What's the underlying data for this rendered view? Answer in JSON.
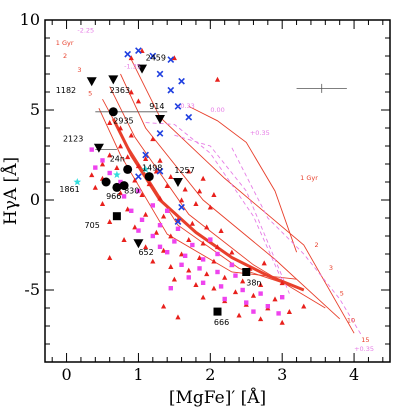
{
  "chart_data": {
    "type": "scatter",
    "xlabel": "[MgFe]′ [Å]",
    "ylabel": "HγA [Å]",
    "xlim": [
      -0.3,
      4.5
    ],
    "ylim": [
      -9,
      10
    ],
    "xticks": [
      0,
      1,
      2,
      3,
      4
    ],
    "yticks": [
      -5,
      0,
      5,
      10
    ],
    "colors": {
      "model_solid": "#e8402c",
      "model_dashed": "#e67de6",
      "cluster_marker": "#000000",
      "red_triangle": "#e8201c",
      "magenta_square": "#ee44ee",
      "blue_cross": "#2040e0",
      "cyan_star": "#33dddd"
    },
    "model_grid_lines": [
      [
        [
          0.9,
          7.8
        ],
        [
          1.3,
          4.6
        ],
        [
          2.2,
          1.2
        ],
        [
          3.3,
          -2.5
        ],
        [
          4.0,
          -7.4
        ]
      ],
      [
        [
          0.75,
          7.0
        ],
        [
          1.1,
          4.0
        ],
        [
          1.9,
          0.0
        ],
        [
          2.9,
          -3.3
        ],
        [
          3.8,
          -6.6
        ]
      ],
      [
        [
          0.6,
          6.3
        ],
        [
          0.95,
          3.5
        ],
        [
          1.7,
          -0.8
        ],
        [
          2.6,
          -3.6
        ],
        [
          3.6,
          -6.0
        ]
      ],
      [
        [
          0.5,
          5.6
        ],
        [
          0.85,
          3.0
        ],
        [
          1.55,
          -1.4
        ],
        [
          2.4,
          -3.8
        ],
        [
          3.3,
          -5.0
        ]
      ],
      [
        [
          0.45,
          5.1
        ],
        [
          0.75,
          2.5
        ],
        [
          1.4,
          -1.9
        ],
        [
          2.3,
          -4.0
        ],
        [
          3.2,
          -4.4
        ]
      ],
      [
        [
          1.7,
          5.2
        ],
        [
          2.1,
          4.4
        ],
        [
          2.5,
          3.2
        ],
        [
          2.9,
          0.5
        ],
        [
          3.2,
          -2.9
        ]
      ]
    ],
    "model_thick_line": [
      [
        0.65,
        4.5
      ],
      [
        0.9,
        2.5
      ],
      [
        1.3,
        0.0
      ],
      [
        1.8,
        -1.8
      ],
      [
        2.3,
        -3.2
      ],
      [
        2.8,
        -4.2
      ],
      [
        3.3,
        -5.0
      ]
    ],
    "model_dashed_lines": [
      [
        [
          1.1,
          4.3
        ],
        [
          1.5,
          4.2
        ],
        [
          2.0,
          2.6
        ],
        [
          2.6,
          -0.9
        ],
        [
          3.0,
          -4.5
        ]
      ],
      [
        [
          1.5,
          3.6
        ],
        [
          2.0,
          3.0
        ],
        [
          2.5,
          0.5
        ],
        [
          2.9,
          -3.3
        ],
        [
          3.1,
          -5.2
        ]
      ],
      [
        [
          2.3,
          2.9
        ],
        [
          2.8,
          -1.0
        ],
        [
          3.3,
          -3.0
        ],
        [
          3.8,
          -5.5
        ],
        [
          4.1,
          -7.5
        ]
      ]
    ],
    "model_labels": [
      {
        "text": "-2.25",
        "x": 0.15,
        "y": 9.3,
        "color": "#e67de6"
      },
      {
        "text": "1 Gyr",
        "x": -0.15,
        "y": 8.6,
        "color": "#e8402c"
      },
      {
        "text": "2",
        "x": -0.05,
        "y": 7.9,
        "color": "#e8402c"
      },
      {
        "text": "3",
        "x": 0.15,
        "y": 7.1,
        "color": "#e8402c"
      },
      {
        "text": "5",
        "x": 0.3,
        "y": 5.8,
        "color": "#e8402c"
      },
      {
        "text": "-1.35",
        "x": 0.8,
        "y": 7.3,
        "color": "#e67de6"
      },
      {
        "text": "-0.33",
        "x": 1.55,
        "y": 5.1,
        "color": "#e67de6"
      },
      {
        "text": "0.00",
        "x": 2.0,
        "y": 4.9,
        "color": "#e67de6"
      },
      {
        "text": "+0.35",
        "x": 2.55,
        "y": 3.6,
        "color": "#e67de6"
      },
      {
        "text": "1 Gyr",
        "x": 3.25,
        "y": 1.1,
        "color": "#e8402c"
      },
      {
        "text": "2",
        "x": 3.45,
        "y": -2.6,
        "color": "#e8402c"
      },
      {
        "text": "3",
        "x": 3.65,
        "y": -3.9,
        "color": "#e8402c"
      },
      {
        "text": "5",
        "x": 3.8,
        "y": -5.3,
        "color": "#e8402c"
      },
      {
        "text": "10",
        "x": 3.9,
        "y": -6.8,
        "color": "#e8402c"
      },
      {
        "text": "15",
        "x": 4.1,
        "y": -7.9,
        "color": "#e8402c"
      },
      {
        "text": "+0.35",
        "x": 4.0,
        "y": -8.4,
        "color": "#e67de6"
      }
    ],
    "clusters": [
      {
        "name": "2459",
        "x": 1.05,
        "y": 7.3,
        "marker": "triangle-down",
        "lx": 1.1,
        "ly": 7.75
      },
      {
        "name": "1182",
        "x": 0.35,
        "y": 6.6,
        "marker": "triangle-down",
        "lx": -0.15,
        "ly": 5.95
      },
      {
        "name": "2363",
        "x": 0.65,
        "y": 6.7,
        "marker": "triangle-down",
        "lx": 0.6,
        "ly": 5.95
      },
      {
        "name": "914",
        "x": 1.3,
        "y": 4.5,
        "marker": "triangle-down",
        "lx": 1.15,
        "ly": 5.05
      },
      {
        "name": "2935",
        "x": 0.65,
        "y": 4.9,
        "marker": "circle",
        "lx": 0.65,
        "ly": 4.25
      },
      {
        "name": "2123",
        "x": 0.45,
        "y": 2.9,
        "marker": "triangle-down",
        "lx": -0.05,
        "ly": 3.25
      },
      {
        "name": "24n",
        "x": 0.85,
        "y": 1.7,
        "marker": "circle",
        "lx": 0.6,
        "ly": 2.15
      },
      {
        "name": "1498",
        "x": 1.15,
        "y": 1.3,
        "marker": "circle",
        "lx": 1.05,
        "ly": 1.65
      },
      {
        "name": "1257",
        "x": 1.55,
        "y": 1.0,
        "marker": "triangle-down",
        "lx": 1.5,
        "ly": 1.5
      },
      {
        "name": "1861",
        "x": 0.55,
        "y": 1.0,
        "marker": "circle",
        "lx": -0.1,
        "ly": 0.45
      },
      {
        "name": "966",
        "x": 0.7,
        "y": 0.7,
        "marker": "circle",
        "lx": 0.55,
        "ly": 0.05
      },
      {
        "name": "830",
        "x": 0.8,
        "y": 0.8,
        "marker": "circle",
        "lx": 0.8,
        "ly": 0.35
      },
      {
        "name": "705",
        "x": 0.7,
        "y": -0.9,
        "marker": "square",
        "lx": 0.25,
        "ly": -1.55
      },
      {
        "name": "652",
        "x": 1.0,
        "y": -2.4,
        "marker": "triangle-down",
        "lx": 1.0,
        "ly": -3.05
      },
      {
        "name": "38n",
        "x": 2.5,
        "y": -4.0,
        "marker": "square",
        "lx": 2.5,
        "ly": -4.75
      },
      {
        "name": "666",
        "x": 2.1,
        "y": -6.2,
        "marker": "square",
        "lx": 2.05,
        "ly": -6.95
      }
    ],
    "red_triangles": [
      [
        1.05,
        8.3
      ],
      [
        0.9,
        7.9
      ],
      [
        1.5,
        7.9
      ],
      [
        2.1,
        6.7
      ],
      [
        0.9,
        6.0
      ],
      [
        1.0,
        5.5
      ],
      [
        0.6,
        4.3
      ],
      [
        0.75,
        4.0
      ],
      [
        0.9,
        3.6
      ],
      [
        1.2,
        3.4
      ],
      [
        0.75,
        3.0
      ],
      [
        0.6,
        2.5
      ],
      [
        0.85,
        2.4
      ],
      [
        1.1,
        2.3
      ],
      [
        1.3,
        2.2
      ],
      [
        0.5,
        2.0
      ],
      [
        0.7,
        1.8
      ],
      [
        1.0,
        1.9
      ],
      [
        1.25,
        1.6
      ],
      [
        1.45,
        1.3
      ],
      [
        1.7,
        1.6
      ],
      [
        1.9,
        1.2
      ],
      [
        0.35,
        1.4
      ],
      [
        0.5,
        1.2
      ],
      [
        0.95,
        1.1
      ],
      [
        1.15,
        0.9
      ],
      [
        1.4,
        0.8
      ],
      [
        1.65,
        0.6
      ],
      [
        1.85,
        0.5
      ],
      [
        2.05,
        0.3
      ],
      [
        0.4,
        0.7
      ],
      [
        0.75,
        0.4
      ],
      [
        1.05,
        0.3
      ],
      [
        1.3,
        0.1
      ],
      [
        1.6,
        0.0
      ],
      [
        1.8,
        -0.2
      ],
      [
        2.0,
        -0.4
      ],
      [
        0.5,
        -0.2
      ],
      [
        0.85,
        -0.5
      ],
      [
        1.1,
        -0.8
      ],
      [
        1.35,
        -0.9
      ],
      [
        1.55,
        -1.1
      ],
      [
        1.75,
        -1.3
      ],
      [
        1.95,
        -1.5
      ],
      [
        2.15,
        -1.7
      ],
      [
        0.6,
        -1.2
      ],
      [
        0.95,
        -1.5
      ],
      [
        1.25,
        -1.8
      ],
      [
        1.45,
        -2.0
      ],
      [
        1.7,
        -2.2
      ],
      [
        1.9,
        -2.4
      ],
      [
        2.1,
        -2.6
      ],
      [
        2.3,
        -2.9
      ],
      [
        0.8,
        -2.2
      ],
      [
        1.1,
        -2.6
      ],
      [
        1.35,
        -2.8
      ],
      [
        1.6,
        -3.0
      ],
      [
        1.85,
        -3.2
      ],
      [
        2.05,
        -3.4
      ],
      [
        2.3,
        -3.6
      ],
      [
        2.55,
        -3.8
      ],
      [
        1.2,
        -3.4
      ],
      [
        1.45,
        -3.7
      ],
      [
        1.7,
        -3.9
      ],
      [
        1.95,
        -4.1
      ],
      [
        2.2,
        -4.3
      ],
      [
        2.45,
        -4.5
      ],
      [
        2.7,
        -4.7
      ],
      [
        1.5,
        -4.4
      ],
      [
        1.8,
        -4.7
      ],
      [
        2.05,
        -4.9
      ],
      [
        2.35,
        -5.1
      ],
      [
        2.6,
        -5.3
      ],
      [
        2.9,
        -5.5
      ],
      [
        1.9,
        -5.4
      ],
      [
        2.2,
        -5.6
      ],
      [
        2.5,
        -5.8
      ],
      [
        2.8,
        -6.0
      ],
      [
        3.1,
        -6.2
      ],
      [
        2.4,
        -6.4
      ],
      [
        2.7,
        -6.6
      ],
      [
        3.0,
        -6.8
      ],
      [
        2.75,
        -3.5
      ],
      [
        3.0,
        -4.6
      ],
      [
        3.3,
        -5.9
      ],
      [
        1.35,
        -5.9
      ],
      [
        1.55,
        -6.5
      ],
      [
        0.6,
        -3.2
      ]
    ],
    "magenta_squares": [
      [
        0.35,
        2.8
      ],
      [
        0.5,
        2.2
      ],
      [
        0.6,
        1.5
      ],
      [
        0.4,
        1.8
      ],
      [
        0.75,
        1.0
      ],
      [
        1.0,
        0.5
      ],
      [
        0.8,
        0.2
      ],
      [
        1.2,
        -0.3
      ],
      [
        1.4,
        -0.6
      ],
      [
        1.05,
        -1.1
      ],
      [
        1.3,
        -1.4
      ],
      [
        1.55,
        -1.6
      ],
      [
        1.2,
        -2.0
      ],
      [
        1.5,
        -2.3
      ],
      [
        1.75,
        -2.5
      ],
      [
        1.4,
        -2.9
      ],
      [
        1.65,
        -3.1
      ],
      [
        1.9,
        -3.3
      ],
      [
        2.1,
        -3.0
      ],
      [
        1.6,
        -3.6
      ],
      [
        1.85,
        -3.8
      ],
      [
        2.1,
        -4.0
      ],
      [
        2.35,
        -4.2
      ],
      [
        1.9,
        -4.6
      ],
      [
        2.15,
        -4.8
      ],
      [
        2.45,
        -5.0
      ],
      [
        2.7,
        -5.2
      ],
      [
        2.2,
        -5.5
      ],
      [
        2.5,
        -5.7
      ],
      [
        2.8,
        -5.9
      ],
      [
        3.0,
        -5.4
      ],
      [
        2.95,
        -6.3
      ],
      [
        2.6,
        -6.2
      ],
      [
        1.7,
        -4.3
      ],
      [
        2.0,
        -2.2
      ],
      [
        1.0,
        -1.7
      ],
      [
        0.9,
        -0.6
      ],
      [
        1.3,
        -2.6
      ],
      [
        2.3,
        -3.6
      ],
      [
        1.45,
        -4.9
      ]
    ],
    "blue_crosses": [
      [
        0.85,
        8.1
      ],
      [
        1.0,
        8.3
      ],
      [
        1.2,
        8.0
      ],
      [
        1.45,
        7.8
      ],
      [
        1.6,
        6.6
      ],
      [
        1.3,
        7.0
      ],
      [
        1.45,
        6.1
      ],
      [
        1.55,
        5.2
      ],
      [
        1.7,
        4.6
      ],
      [
        1.3,
        3.7
      ],
      [
        1.1,
        2.5
      ],
      [
        1.3,
        1.6
      ],
      [
        1.0,
        1.3
      ],
      [
        1.6,
        -0.4
      ],
      [
        1.55,
        -1.2
      ]
    ],
    "cyan_stars": [
      [
        0.15,
        1.0
      ],
      [
        0.7,
        1.4
      ],
      [
        1.1,
        1.7
      ]
    ],
    "error_bars": [
      {
        "x": 0.9,
        "y": 4.9,
        "dx": 0.5,
        "dy": 0.0
      },
      {
        "x": 0.55,
        "y": 2.8,
        "dx": 0.15,
        "dy": 0.0
      },
      {
        "x": 3.55,
        "y": 6.2,
        "dx": 0.35,
        "dy": 0.25
      }
    ]
  }
}
